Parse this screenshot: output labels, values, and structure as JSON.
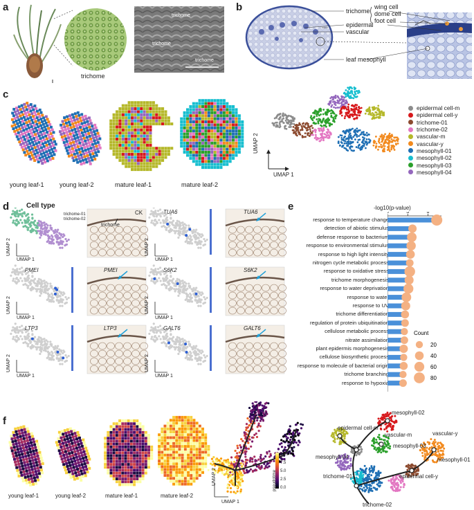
{
  "panel_labels": [
    "a",
    "b",
    "c",
    "d",
    "e",
    "f"
  ],
  "panel_a": {
    "trichome_label": "trichome",
    "sem_labels": [
      "trichome",
      "trichome",
      "trichome"
    ]
  },
  "panel_b": {
    "labels": {
      "trichome": "trichome",
      "epidermal": "epidermal",
      "vascular": "vascular",
      "leaf_mesophyll": "leaf mesophyll",
      "wing_cell": "wing cell",
      "dome_cell": "dome cell",
      "foot_cell": "foot cell"
    }
  },
  "panel_c": {
    "leaf_captions": [
      "young leaf-1",
      "young leaf-2",
      "mature leaf-1",
      "mature leaf-2"
    ],
    "umap_x": "UMAP 1",
    "umap_y": "UMAP 2",
    "legend": [
      {
        "name": "epidermal cell-m",
        "color": "#8c8c8c"
      },
      {
        "name": "epidermal cell-y",
        "color": "#d7191c"
      },
      {
        "name": "trichome-01",
        "color": "#8c4a2f"
      },
      {
        "name": "trichome-02",
        "color": "#e377c2"
      },
      {
        "name": "vascular-m",
        "color": "#b5b82a"
      },
      {
        "name": "vascular-y",
        "color": "#f28a1e"
      },
      {
        "name": "mesophyll-01",
        "color": "#1f6fb4"
      },
      {
        "name": "mesophyll-02",
        "color": "#17becf"
      },
      {
        "name": "mesophyll-03",
        "color": "#2ca02c"
      },
      {
        "name": "mesophyll-04",
        "color": "#9467bd"
      }
    ]
  },
  "panel_d": {
    "title": "Cell type",
    "legend_small": [
      "trichome-01",
      "trichome-02"
    ],
    "umap_x": "UMAP 1",
    "umap_y": "UMAP 2",
    "ck": "CK",
    "trichome_arrow": "trichome",
    "genes": [
      "TUA6",
      "PMEI",
      "S6K2",
      "LTP3",
      "GALT6"
    ]
  },
  "panel_e": {
    "chart_data": {
      "type": "bar",
      "xlabel": "-log10(p-value)",
      "x_ticks": [
        0,
        3,
        6
      ],
      "xlim": [
        0,
        8
      ],
      "categories": [
        "response to temperature change",
        "detection of abiotic stimulus",
        "defense response to bacterium",
        "response to environmental stimulus",
        "response to high light intensity",
        "nitrogen cycle metabolic process",
        "response to oxidative stress",
        "trichome morphogenesis",
        "response to water deprivation",
        "response to water",
        "response to UV",
        "trichome differentiation",
        "regulation of protein ubiquitination",
        "cellulose metabolic process",
        "nitrate assimilation",
        "plant epidermis morphogenesis",
        "cellulose biosynthetic process",
        "response to molecule of bacterial origin",
        "trichome branching",
        "response to hypoxia"
      ],
      "values": [
        7.3,
        3.7,
        3.6,
        3.5,
        3.4,
        3.3,
        3.3,
        3.2,
        3.1,
        2.8,
        2.7,
        2.6,
        2.6,
        2.5,
        2.5,
        2.4,
        2.4,
        2.4,
        2.3,
        2.3
      ],
      "counts": [
        85,
        35,
        55,
        50,
        40,
        25,
        75,
        45,
        60,
        55,
        45,
        30,
        25,
        20,
        25,
        35,
        20,
        30,
        20,
        25
      ],
      "size_legend_title": "Count",
      "size_legend": [
        20,
        40,
        60,
        80
      ],
      "bar_color": "#4a90d9",
      "dot_color": "#f4b183"
    }
  },
  "panel_f": {
    "leaf_captions": [
      "young leaf-1",
      "young leaf-2",
      "mature leaf-1",
      "mature leaf-2"
    ],
    "umap_x": "UMAP 1",
    "umap_y": "UMAP 2",
    "colorbar_title": "pseudotime",
    "colorbar_ticks": [
      "10.0",
      "7.5",
      "5.0",
      "2.5",
      "0.0"
    ],
    "traj_labels": {
      "mesophyll_02": "mesophyll-02",
      "epidermal_cell_m": "epidermal cell-m",
      "vascular_m": "vascular-m",
      "vascular_y": "vascular-y",
      "mesophyll_03": "mesophyll-03",
      "mesophyll_04": "mesophyll-04",
      "mesophyll_01": "mesophyll-01",
      "trichome_01": "trichome-01",
      "epidermal_cell_y": "epidermal cell-y",
      "trichome_02": "trichome-02"
    }
  }
}
